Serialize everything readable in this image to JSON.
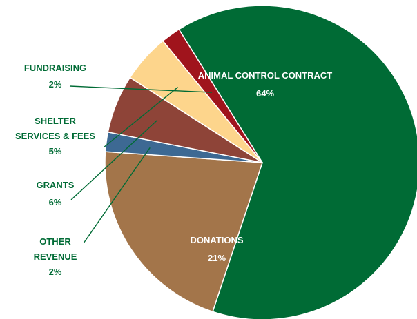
{
  "chart_data": {
    "type": "pie",
    "title": "",
    "start": "ANIMAL CONTROL CONTRACT",
    "direction": "clockwise",
    "slices": [
      {
        "name": "ANIMAL CONTROL CONTRACT",
        "value": 64,
        "value_label": "64%",
        "color": "#006B35",
        "label_color": "#ffffff",
        "label_placement": "inside"
      },
      {
        "name": "DONATIONS",
        "value": 21,
        "value_label": "21%",
        "color": "#A3754A",
        "label_color": "#ffffff",
        "label_placement": "inside"
      },
      {
        "name": "OTHER REVENUE",
        "value": 2,
        "value_label": "2%",
        "color": "#3D6993",
        "label_color": "#006B35",
        "label_placement": "outside-left",
        "label_lines": [
          "OTHER",
          "REVENUE"
        ]
      },
      {
        "name": "GRANTS",
        "value": 6,
        "value_label": "6%",
        "color": "#8E4438",
        "label_color": "#006B35",
        "label_placement": "outside-left",
        "label_lines": [
          "GRANTS"
        ]
      },
      {
        "name": "SHELTER SERVICES & FEES",
        "value": 5,
        "value_label": "5%",
        "color": "#FDD58C",
        "label_color": "#006B35",
        "label_placement": "outside-left",
        "label_lines": [
          "SHELTER",
          "SERVICES & FEES"
        ]
      },
      {
        "name": "FUNDRAISING",
        "value": 2,
        "value_label": "2%",
        "color": "#A0141C",
        "label_color": "#006B35",
        "label_placement": "outside-left",
        "label_lines": [
          "FUNDRAISING"
        ]
      }
    ]
  }
}
